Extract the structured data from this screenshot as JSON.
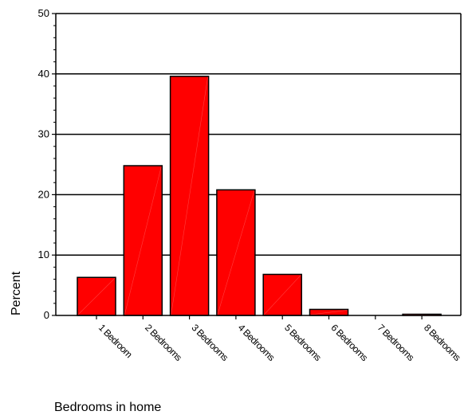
{
  "chart_data": {
    "type": "bar",
    "categories": [
      "1 Bedroom",
      "2 Bedrooms",
      "3 Bedrooms",
      "4 Bedrooms",
      "5 Bedrooms",
      "6 Bedrooms",
      "7 Bedrooms",
      "8 Bedrooms"
    ],
    "values": [
      6.3,
      24.8,
      39.6,
      20.8,
      6.8,
      1.0,
      0.0,
      0.2
    ],
    "title": "",
    "xlabel": "Bedrooms in home",
    "ylabel": "Percent",
    "ylim": [
      0,
      50
    ],
    "yticks": [
      "0",
      "10",
      "20",
      "30",
      "40",
      "50"
    ],
    "grid": true,
    "legend": "none",
    "colors": {
      "bar": "#ff0000",
      "bar_edge": "#000000",
      "grid": "#000000"
    }
  }
}
